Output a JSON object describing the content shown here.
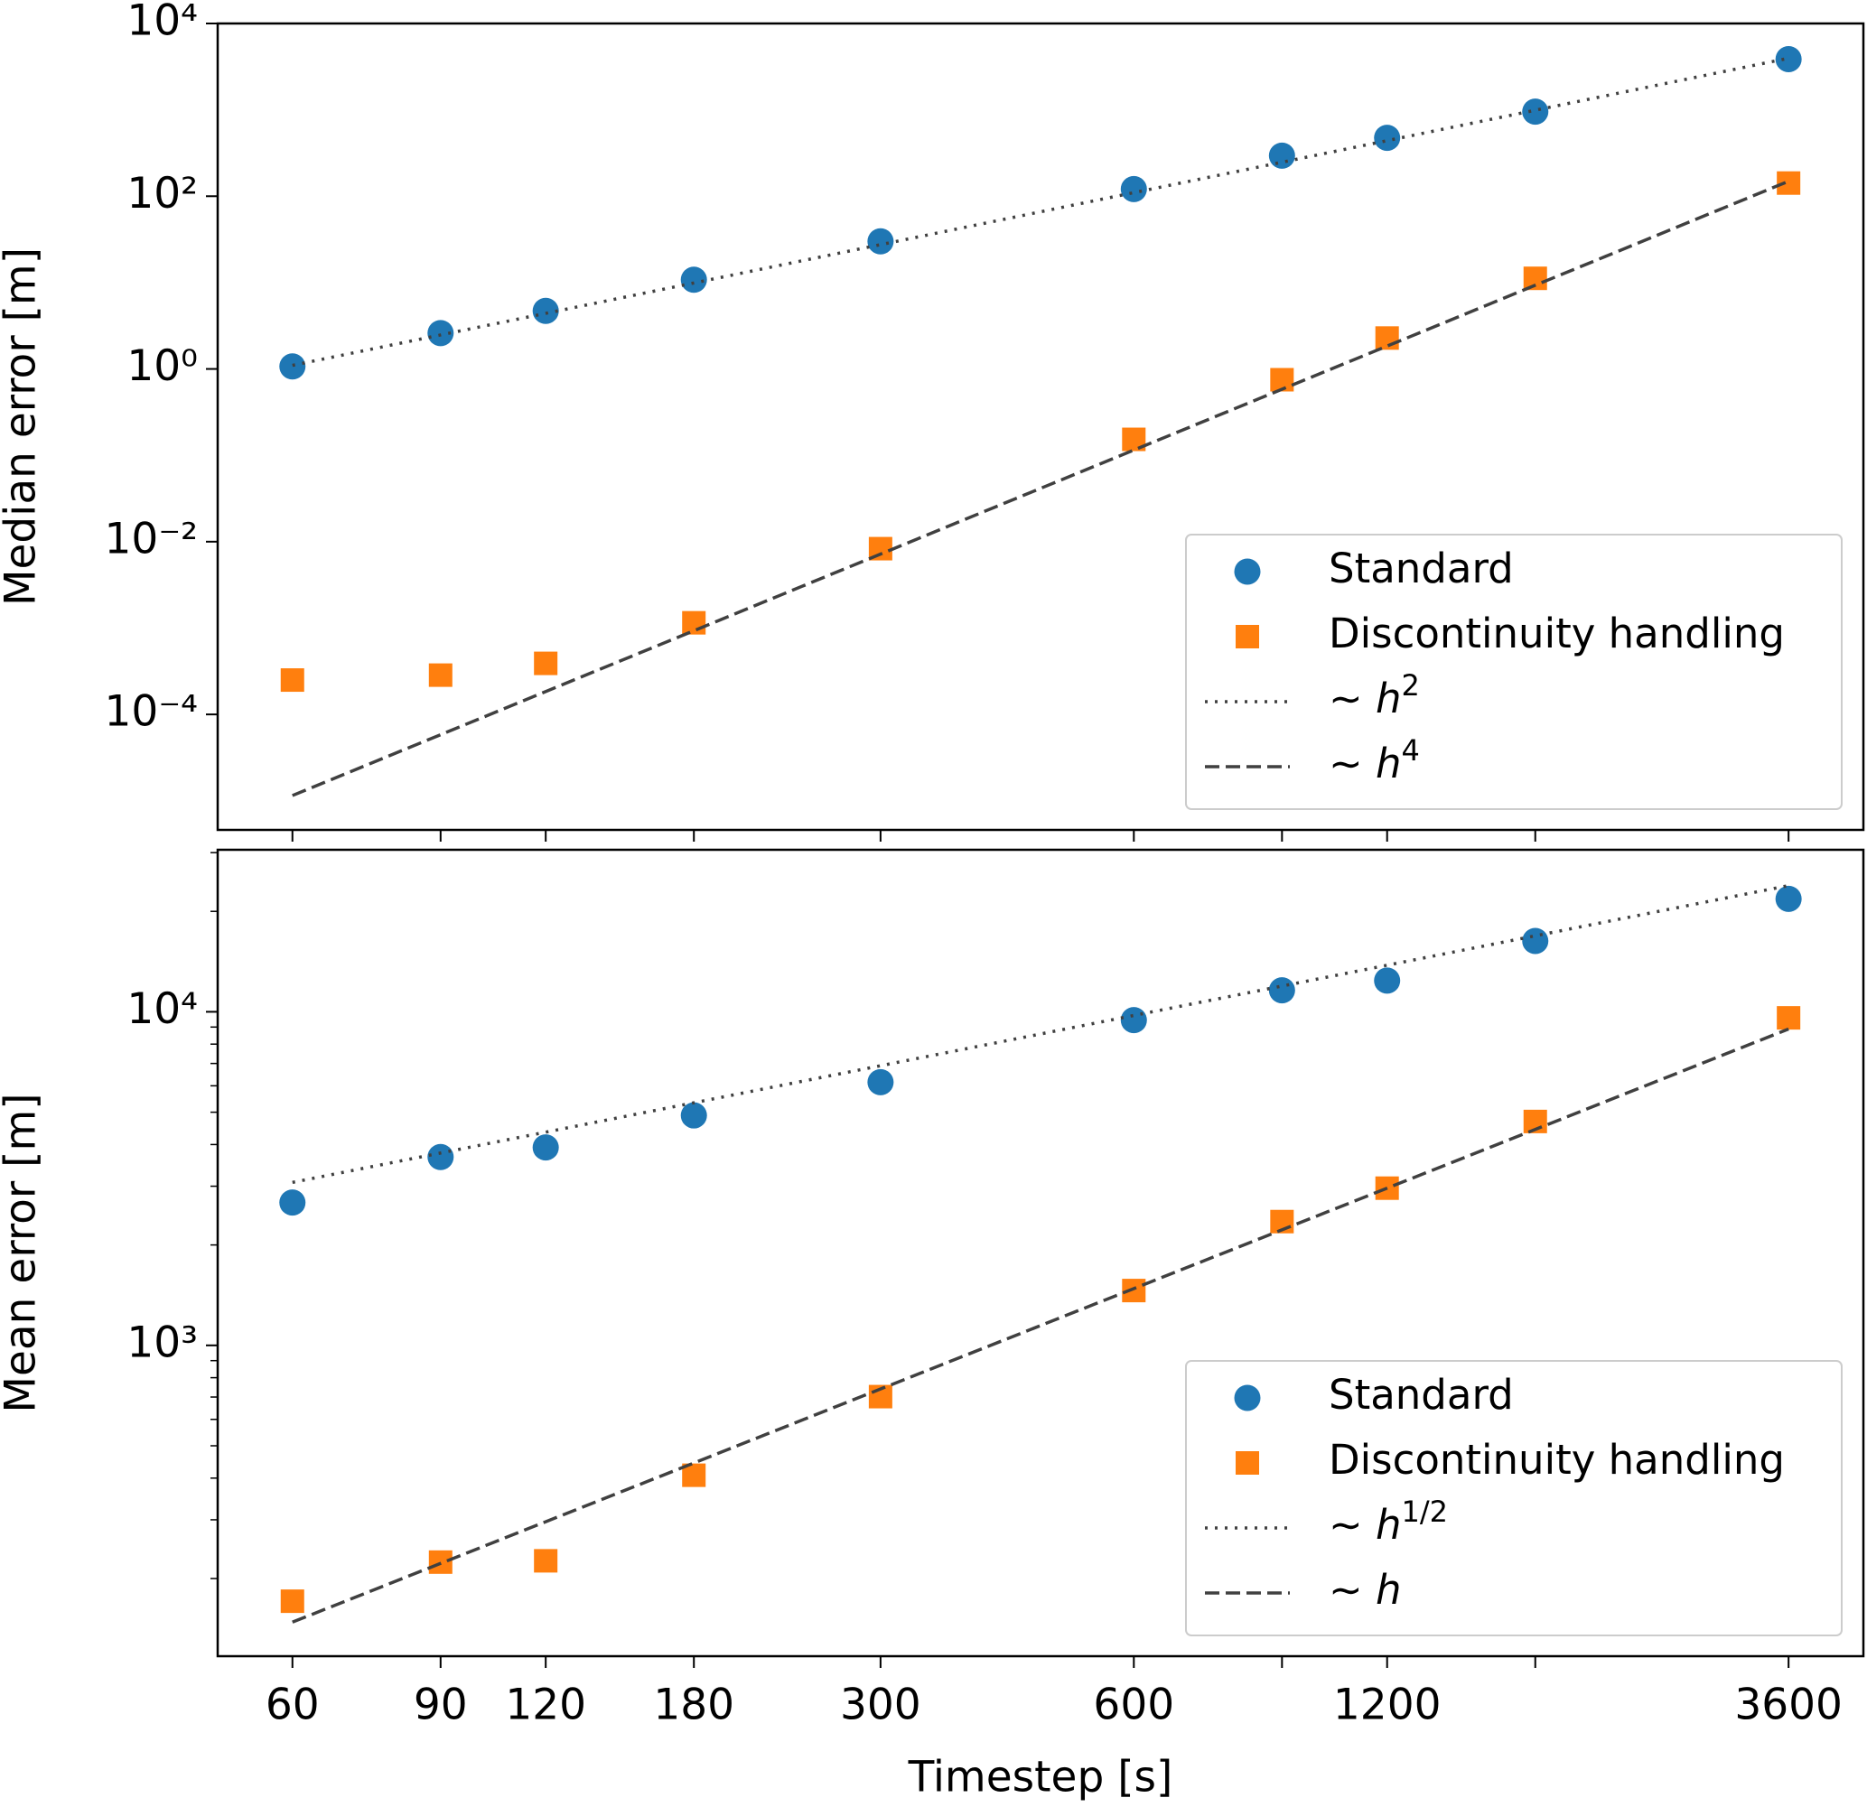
{
  "chart_data": [
    {
      "type": "scatter",
      "ylabel": "Median error [m]",
      "xlog": true,
      "ylog": true,
      "x": [
        60,
        90,
        120,
        180,
        300,
        600,
        900,
        1200,
        1800,
        3600
      ],
      "xlim": [
        48.9,
        4418
      ],
      "xticks": [
        60,
        90,
        120,
        180,
        300,
        600,
        1200,
        3600
      ],
      "xminor_ticks": [
        900,
        1800
      ],
      "show_xticklabels": false,
      "ylim": [
        4.6e-06,
        10000
      ],
      "yticks": [
        {
          "value": 0.0001,
          "label": "10⁻⁴"
        },
        {
          "value": 0.01,
          "label": "10⁻²"
        },
        {
          "value": 1,
          "label": "10⁰"
        },
        {
          "value": 100,
          "label": "10²"
        },
        {
          "value": 10000,
          "label": "10⁴"
        }
      ],
      "legend": "lower right",
      "series": [
        {
          "name": "Standard",
          "marker": "circle",
          "color": "#1f77b4",
          "values": [
            1.07,
            2.6,
            4.7,
            10.8,
            30,
            121,
            295,
            474,
            953,
            3860
          ]
        },
        {
          "name": "Discontinuity handling",
          "marker": "square",
          "color": "#ff7f0e",
          "values": [
            0.00025,
            0.000285,
            0.00039,
            0.00115,
            0.0083,
            0.153,
            0.75,
            2.28,
            11.2,
            142
          ]
        },
        {
          "name": "∼ h",
          "exponent": "2",
          "linestyle": "dotted",
          "color": "#404040",
          "x": [
            60,
            3600
          ],
          "values": [
            1.1,
            3960
          ]
        },
        {
          "name": "∼ h",
          "exponent": "4",
          "linestyle": "dashed",
          "color": "#404040",
          "x": [
            60,
            3600
          ],
          "values": [
            1.15e-05,
            149
          ]
        }
      ]
    },
    {
      "type": "scatter",
      "ylabel": "Mean error [m]",
      "xlabel": "Timestep [s]",
      "xlog": true,
      "ylog": true,
      "x": [
        60,
        90,
        120,
        180,
        300,
        600,
        900,
        1200,
        1800,
        3600
      ],
      "xlim": [
        48.9,
        4418
      ],
      "xticks": [
        60,
        90,
        120,
        180,
        300,
        600,
        1200,
        3600
      ],
      "xminor_ticks": [
        900,
        1800
      ],
      "show_xticklabels": true,
      "ylim": [
        117,
        30600
      ],
      "yticks": [
        {
          "value": 1000,
          "label": "10³"
        },
        {
          "value": 10000,
          "label": "10⁴"
        }
      ],
      "yminor_ticks": [
        200,
        300,
        400,
        500,
        600,
        700,
        800,
        900,
        2000,
        3000,
        4000,
        5000,
        6000,
        7000,
        8000,
        9000,
        20000,
        30000
      ],
      "legend": "lower right",
      "series": [
        {
          "name": "Standard",
          "marker": "circle",
          "color": "#1f77b4",
          "values": [
            2680,
            3670,
            3920,
            4890,
            6150,
            9440,
            11600,
            12400,
            16300,
            21800
          ]
        },
        {
          "name": "Discontinuity handling",
          "marker": "square",
          "color": "#ff7f0e",
          "values": [
            171,
            224,
            226,
            408,
            702,
            1460,
            2350,
            2960,
            4690,
            9590
          ]
        },
        {
          "name": "∼ h",
          "exponent": "1/2",
          "linestyle": "dotted",
          "color": "#404040",
          "x": [
            60,
            3600
          ],
          "values": [
            3080,
            23900
          ]
        },
        {
          "name": "∼ h",
          "linestyle": "dashed",
          "color": "#404040",
          "x": [
            60,
            3600
          ],
          "values": [
            148,
            8880
          ]
        }
      ]
    }
  ]
}
